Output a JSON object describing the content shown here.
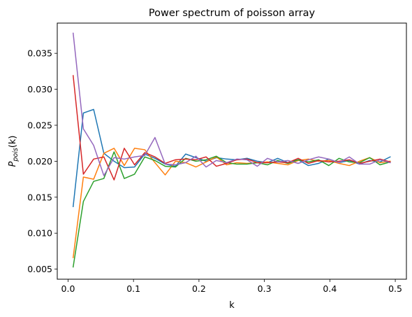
{
  "chart_data": {
    "type": "line",
    "title": "Power spectrum of poisson array",
    "xlabel": "k",
    "ylabel_main": "P",
    "ylabel_sub": "pois",
    "ylabel_tail": "(k)",
    "xlim": [
      -0.0165,
      0.517
    ],
    "ylim": [
      0.0036,
      0.0392
    ],
    "xticks": [
      0.0,
      0.1,
      0.2,
      0.3,
      0.4,
      0.5
    ],
    "xtick_labels": [
      "0.0",
      "0.1",
      "0.2",
      "0.3",
      "0.4",
      "0.5"
    ],
    "yticks": [
      0.005,
      0.01,
      0.015,
      0.02,
      0.025,
      0.03,
      0.035
    ],
    "ytick_labels": [
      "0.005",
      "0.010",
      "0.015",
      "0.020",
      "0.025",
      "0.030",
      "0.035"
    ],
    "grid": false,
    "legend": "none",
    "x": [
      0.0078,
      0.0234,
      0.0391,
      0.0547,
      0.0703,
      0.0859,
      0.1016,
      0.1172,
      0.1328,
      0.1484,
      0.1641,
      0.1797,
      0.1953,
      0.2109,
      0.2266,
      0.2422,
      0.2578,
      0.2734,
      0.2891,
      0.3047,
      0.3203,
      0.3359,
      0.3516,
      0.3672,
      0.3828,
      0.3984,
      0.4141,
      0.4297,
      0.4453,
      0.4609,
      0.4766,
      0.4922
    ],
    "series": [
      {
        "color": "#1f77b4",
        "values": [
          0.0137,
          0.0267,
          0.0272,
          0.0211,
          0.02,
          0.0191,
          0.0192,
          0.021,
          0.0204,
          0.0196,
          0.0193,
          0.021,
          0.0205,
          0.02,
          0.0205,
          0.0203,
          0.0202,
          0.0204,
          0.02,
          0.0198,
          0.0204,
          0.0198,
          0.0202,
          0.0194,
          0.0197,
          0.0203,
          0.0198,
          0.0201,
          0.0196,
          0.0201,
          0.0199,
          0.0206
        ]
      },
      {
        "color": "#ff7f0e",
        "values": [
          0.0066,
          0.0178,
          0.0175,
          0.0211,
          0.0218,
          0.0194,
          0.0218,
          0.0216,
          0.0198,
          0.0181,
          0.02,
          0.0198,
          0.0192,
          0.0199,
          0.0206,
          0.0195,
          0.0198,
          0.0197,
          0.0198,
          0.0199,
          0.0197,
          0.0195,
          0.0201,
          0.0203,
          0.02,
          0.0201,
          0.0197,
          0.0194,
          0.02,
          0.0205,
          0.0198,
          0.02
        ]
      },
      {
        "color": "#2ca02c",
        "values": [
          0.0053,
          0.0144,
          0.0172,
          0.0176,
          0.0213,
          0.0176,
          0.0182,
          0.0206,
          0.0201,
          0.0193,
          0.0192,
          0.0204,
          0.02,
          0.0202,
          0.0207,
          0.0198,
          0.0196,
          0.0196,
          0.0198,
          0.0195,
          0.0201,
          0.0197,
          0.0202,
          0.0199,
          0.0202,
          0.0194,
          0.0204,
          0.0199,
          0.0198,
          0.0205,
          0.0195,
          0.0199
        ]
      },
      {
        "color": "#d62728",
        "values": [
          0.0319,
          0.0182,
          0.0203,
          0.0206,
          0.0174,
          0.0218,
          0.0195,
          0.0212,
          0.0206,
          0.0197,
          0.0202,
          0.0203,
          0.0202,
          0.0206,
          0.0193,
          0.0197,
          0.0202,
          0.0203,
          0.0198,
          0.0198,
          0.0199,
          0.0198,
          0.0204,
          0.0197,
          0.0201,
          0.0199,
          0.02,
          0.0202,
          0.0197,
          0.02,
          0.0203,
          0.0199
        ]
      },
      {
        "color": "#9467bd",
        "values": [
          0.0378,
          0.0245,
          0.0222,
          0.018,
          0.0205,
          0.0203,
          0.0206,
          0.0208,
          0.0233,
          0.0196,
          0.0195,
          0.0198,
          0.0207,
          0.0192,
          0.0201,
          0.0198,
          0.0203,
          0.0202,
          0.0193,
          0.0204,
          0.0199,
          0.0201,
          0.0197,
          0.0202,
          0.0206,
          0.0203,
          0.0198,
          0.0206,
          0.0196,
          0.0196,
          0.0202,
          0.0198
        ]
      }
    ]
  }
}
